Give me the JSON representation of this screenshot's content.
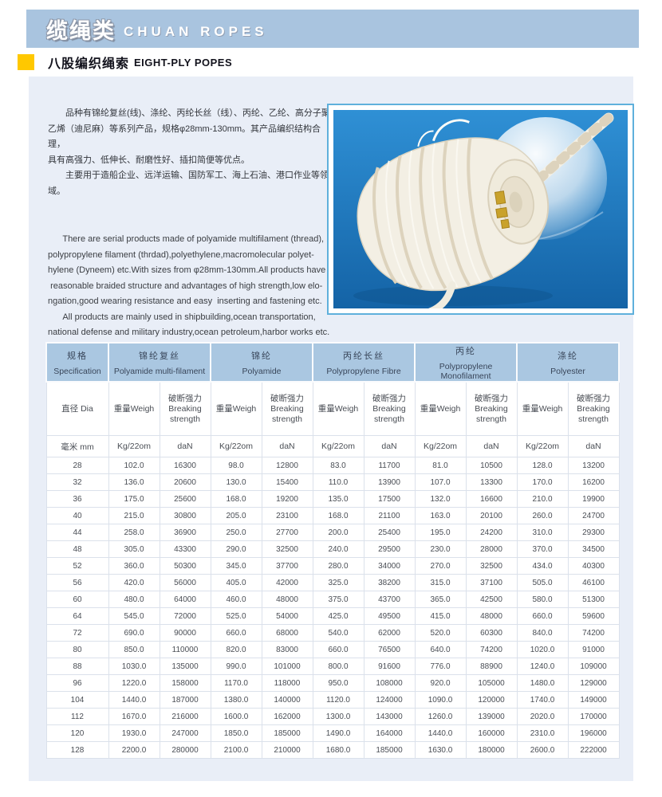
{
  "banner": {
    "title_zh": "缆绳类",
    "title_en": "CHUAN ROPES",
    "bg_color": "#a9c4df"
  },
  "subtitle": {
    "zh": "八股编织绳索",
    "en": "EIGHT-PLY POPES",
    "bullet_color": "#ffc800"
  },
  "intro": {
    "zh": "　　品种有锦纶复丝(线)、涤纶、丙纶长丝（线）、丙纶、乙纶、高分子聚\n乙烯（迪尼麻）等系列产品，规格φ28mm-130mm。其产品编织结构合理，\n具有高强力、低伸长、耐磨性好、插扣简便等优点。\n　　主要用于造船企业、远洋运输、国防军工、海上石油、港口作业等领域。",
    "en": "      There are serial products made of polyamide multifilament (thread),\npolypropylene filament (thrdad),polyethylene,macromolecular polyet-\nhylene (Dyneem) etc.With sizes from φ28mm-130mm.All products have\n reasonable braided structure and advantages of high strength,low elo-\nngation,good wearing resistance and easy  inserting and fastening etc.\n      All products are mainly used in shipbuilding,ocean transportation,\nnational defense and military industry,ocean petroleum,harbor works etc."
  },
  "photo": {
    "subject": "white eight-ply braided rope coil on blue background"
  },
  "table": {
    "col_groups": [
      {
        "zh": "规格",
        "en": "Specification",
        "span": 1
      },
      {
        "zh": "锦纶复丝",
        "en": "Polyamide multi-filament",
        "span": 2
      },
      {
        "zh": "锦纶",
        "en": "Polyamide",
        "span": 2
      },
      {
        "zh": "丙纶长丝",
        "en": "Polypropylene Fibre",
        "span": 2
      },
      {
        "zh": "丙纶",
        "en": "Polypropylene Monofilament",
        "span": 2
      },
      {
        "zh": "涤纶",
        "en": "Polyester",
        "span": 2
      }
    ],
    "sub_header": {
      "dia": "直径 Dia",
      "weight": "重量Weigh",
      "breaking": "破断强力\nBreaking\nstrength"
    },
    "units": {
      "dia": "毫米 mm",
      "weight": "Kg/22om",
      "breaking": "daN"
    },
    "rows": [
      [
        "28",
        "102.0",
        "16300",
        "98.0",
        "12800",
        "83.0",
        "11700",
        "81.0",
        "10500",
        "128.0",
        "13200"
      ],
      [
        "32",
        "136.0",
        "20600",
        "130.0",
        "15400",
        "110.0",
        "13900",
        "107.0",
        "13300",
        "170.0",
        "16200"
      ],
      [
        "36",
        "175.0",
        "25600",
        "168.0",
        "19200",
        "135.0",
        "17500",
        "132.0",
        "16600",
        "210.0",
        "19900"
      ],
      [
        "40",
        "215.0",
        "30800",
        "205.0",
        "23100",
        "168.0",
        "21100",
        "163.0",
        "20100",
        "260.0",
        "24700"
      ],
      [
        "44",
        "258.0",
        "36900",
        "250.0",
        "27700",
        "200.0",
        "25400",
        "195.0",
        "24200",
        "310.0",
        "29300"
      ],
      [
        "48",
        "305.0",
        "43300",
        "290.0",
        "32500",
        "240.0",
        "29500",
        "230.0",
        "28000",
        "370.0",
        "34500"
      ],
      [
        "52",
        "360.0",
        "50300",
        "345.0",
        "37700",
        "280.0",
        "34000",
        "270.0",
        "32500",
        "434.0",
        "40300"
      ],
      [
        "56",
        "420.0",
        "56000",
        "405.0",
        "42000",
        "325.0",
        "38200",
        "315.0",
        "37100",
        "505.0",
        "46100"
      ],
      [
        "60",
        "480.0",
        "64000",
        "460.0",
        "48000",
        "375.0",
        "43700",
        "365.0",
        "42500",
        "580.0",
        "51300"
      ],
      [
        "64",
        "545.0",
        "72000",
        "525.0",
        "54000",
        "425.0",
        "49500",
        "415.0",
        "48000",
        "660.0",
        "59600"
      ],
      [
        "72",
        "690.0",
        "90000",
        "660.0",
        "68000",
        "540.0",
        "62000",
        "520.0",
        "60300",
        "840.0",
        "74200"
      ],
      [
        "80",
        "850.0",
        "110000",
        "820.0",
        "83000",
        "660.0",
        "76500",
        "640.0",
        "74200",
        "1020.0",
        "91000"
      ],
      [
        "88",
        "1030.0",
        "135000",
        "990.0",
        "101000",
        "800.0",
        "91600",
        "776.0",
        "88900",
        "1240.0",
        "109000"
      ],
      [
        "96",
        "1220.0",
        "158000",
        "1170.0",
        "118000",
        "950.0",
        "108000",
        "920.0",
        "105000",
        "1480.0",
        "129000"
      ],
      [
        "104",
        "1440.0",
        "187000",
        "1380.0",
        "140000",
        "1120.0",
        "124000",
        "1090.0",
        "120000",
        "1740.0",
        "149000"
      ],
      [
        "112",
        "1670.0",
        "216000",
        "1600.0",
        "162000",
        "1300.0",
        "143000",
        "1260.0",
        "139000",
        "2020.0",
        "170000"
      ],
      [
        "120",
        "1930.0",
        "247000",
        "1850.0",
        "185000",
        "1490.0",
        "164000",
        "1440.0",
        "160000",
        "2310.0",
        "196000"
      ],
      [
        "128",
        "2200.0",
        "280000",
        "2100.0",
        "210000",
        "1680.0",
        "185000",
        "1630.0",
        "180000",
        "2600.0",
        "222000"
      ]
    ]
  }
}
